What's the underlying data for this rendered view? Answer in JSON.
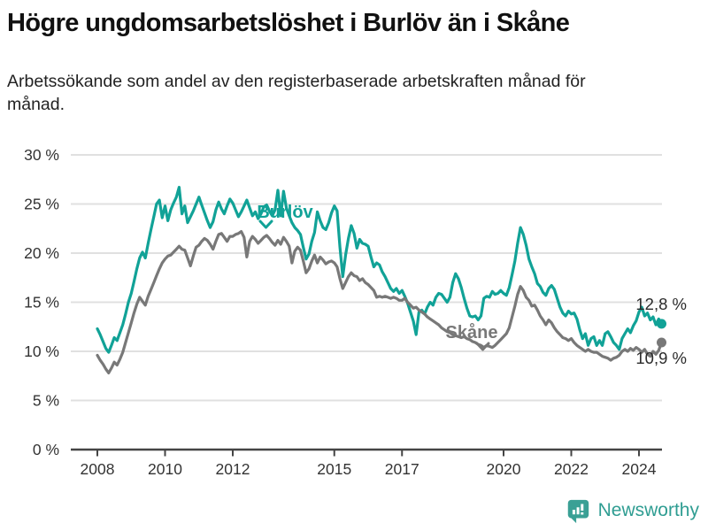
{
  "header": {
    "title": "Högre ungdomsarbetslöshet i Burlöv än i Skåne",
    "subtitle": "Arbetssökande som andel av den registerbaserade arbetskraften månad för månad."
  },
  "footer": {
    "brand": "Newsworthy",
    "logo_icon": "bar-chart-speech-bubble-icon"
  },
  "colors": {
    "burlov": "#11a297",
    "skane": "#787878",
    "grid": "#e0e0e0",
    "axis": "#444444",
    "tick_text": "#333333",
    "annotation_text": "#2b2b2b",
    "brand": "#3aa095"
  },
  "chart_data": {
    "type": "line",
    "frequency": "monthly",
    "start": {
      "year": 2008,
      "month": 1
    },
    "end": {
      "year": 2024,
      "month": 9
    },
    "unit": "%",
    "ylim": [
      0,
      30
    ],
    "grid": true,
    "y_tick_values": [
      0,
      5,
      10,
      15,
      20,
      25,
      30
    ],
    "y_tick_labels": [
      "0 %",
      "5 %",
      "10 %",
      "15 %",
      "20 %",
      "25 %",
      "30 %"
    ],
    "x_ticks": [
      2008,
      2010,
      2012,
      2015,
      2017,
      2020,
      2022,
      2024
    ],
    "x_tick_labels": [
      "2008",
      "2010",
      "2012",
      "2015",
      "2017",
      "2020",
      "2022",
      "2024"
    ],
    "series": [
      {
        "name": "Burlöv",
        "color": "#11a297",
        "end_label": "12,8 %",
        "end_value": 12.8,
        "values": [
          12.3,
          11.7,
          11.0,
          10.3,
          9.9,
          10.6,
          11.4,
          11.1,
          11.9,
          12.7,
          13.8,
          15.0,
          15.9,
          17.1,
          18.4,
          19.5,
          20.1,
          19.5,
          21.0,
          22.4,
          23.7,
          25.0,
          25.4,
          23.6,
          24.8,
          23.3,
          24.4,
          25.1,
          25.7,
          26.7,
          24.0,
          24.8,
          23.1,
          23.7,
          24.3,
          25.0,
          25.7,
          24.9,
          24.1,
          23.3,
          22.6,
          23.2,
          24.4,
          25.2,
          24.5,
          24.0,
          24.8,
          25.5,
          25.1,
          24.4,
          23.7,
          24.2,
          24.8,
          25.4,
          24.6,
          23.8,
          24.2,
          23.5,
          24.0,
          24.7,
          24.9,
          24.3,
          23.8,
          24.4,
          26.4,
          23.8,
          26.3,
          24.6,
          23.8,
          23.1,
          22.6,
          22.3,
          21.9,
          20.6,
          19.4,
          19.9,
          21.2,
          22.1,
          24.2,
          23.3,
          22.6,
          22.4,
          23.1,
          24.1,
          24.8,
          24.3,
          20.6,
          17.6,
          19.8,
          21.5,
          22.8,
          22.0,
          20.5,
          21.4,
          21.0,
          20.9,
          20.7,
          19.6,
          18.6,
          19.0,
          18.8,
          18.1,
          17.6,
          17.0,
          16.4,
          16.1,
          16.4,
          15.9,
          16.2,
          15.6,
          14.9,
          14.0,
          13.1,
          11.7,
          14.0,
          14.2,
          13.8,
          14.5,
          15.0,
          14.7,
          15.5,
          15.9,
          15.8,
          15.4,
          15.0,
          15.5,
          17.0,
          17.9,
          17.4,
          16.5,
          15.4,
          14.4,
          13.6,
          13.5,
          13.6,
          13.2,
          13.6,
          15.4,
          15.6,
          15.5,
          16.1,
          15.8,
          15.9,
          16.2,
          15.9,
          15.7,
          16.5,
          17.8,
          19.2,
          21.0,
          22.6,
          21.9,
          20.8,
          19.4,
          18.6,
          17.9,
          16.9,
          16.6,
          16.0,
          15.7,
          16.4,
          16.7,
          16.3,
          15.4,
          14.5,
          13.9,
          13.6,
          14.1,
          13.8,
          13.9,
          13.3,
          12.2,
          11.3,
          11.8,
          10.6,
          11.3,
          11.5,
          10.6,
          11.1,
          10.6,
          11.8,
          12.0,
          11.5,
          10.9,
          10.6,
          10.2,
          11.3,
          11.8,
          12.3,
          11.9,
          12.6,
          13.1,
          14.0,
          14.5,
          13.6,
          13.9,
          13.2,
          13.5,
          12.7,
          13.3,
          12.8
        ]
      },
      {
        "name": "Skåne",
        "color": "#787878",
        "end_label": "10,9 %",
        "end_value": 10.9,
        "values": [
          9.6,
          9.1,
          8.7,
          8.2,
          7.8,
          8.3,
          8.9,
          8.6,
          9.2,
          9.9,
          10.9,
          11.9,
          12.9,
          13.9,
          14.8,
          15.5,
          15.1,
          14.7,
          15.6,
          16.3,
          17.0,
          17.7,
          18.4,
          19.0,
          19.4,
          19.7,
          19.8,
          20.1,
          20.4,
          20.7,
          20.4,
          20.3,
          19.5,
          18.7,
          19.7,
          20.6,
          20.8,
          21.2,
          21.5,
          21.3,
          20.9,
          20.4,
          21.2,
          21.9,
          22.0,
          21.6,
          21.2,
          21.7,
          21.7,
          21.9,
          22.0,
          22.2,
          21.6,
          19.6,
          21.2,
          21.7,
          21.4,
          21.0,
          21.3,
          21.6,
          21.8,
          21.5,
          21.1,
          20.8,
          21.3,
          20.9,
          21.6,
          21.2,
          20.7,
          19.0,
          20.2,
          20.6,
          20.3,
          19.2,
          18.0,
          18.4,
          19.2,
          19.8,
          19.0,
          19.6,
          19.3,
          18.9,
          19.1,
          19.2,
          19.0,
          18.6,
          17.4,
          16.4,
          17.0,
          17.6,
          18.0,
          17.7,
          17.6,
          17.2,
          17.4,
          17.0,
          16.8,
          16.5,
          16.2,
          15.5,
          15.6,
          15.5,
          15.6,
          15.5,
          15.4,
          15.5,
          15.4,
          15.2,
          15.2,
          15.4,
          15.0,
          14.7,
          14.4,
          14.5,
          14.2,
          14.0,
          13.8,
          13.5,
          13.3,
          13.1,
          12.9,
          12.7,
          12.4,
          12.2,
          12.0,
          11.9,
          11.7,
          11.6,
          11.5,
          11.4,
          11.5,
          11.3,
          11.2,
          11.0,
          10.9,
          10.7,
          10.6,
          10.4,
          10.6,
          10.5,
          10.4,
          10.6,
          10.9,
          11.2,
          11.5,
          11.8,
          12.4,
          13.5,
          14.6,
          15.8,
          16.6,
          16.2,
          15.5,
          15.2,
          14.6,
          14.7,
          14.2,
          13.6,
          13.2,
          12.7,
          13.2,
          12.9,
          12.4,
          12.0,
          11.7,
          11.4,
          11.3,
          11.1,
          11.3,
          10.9,
          10.6,
          10.4,
          10.2,
          10.0,
          10.2,
          10.0,
          9.9,
          9.9,
          9.7,
          9.5,
          9.4,
          9.3,
          9.1,
          9.3,
          9.4,
          9.6,
          10.0,
          10.2,
          10.0,
          10.3,
          10.1,
          10.4,
          10.2,
          9.9,
          10.2,
          9.7,
          9.5,
          10.0,
          9.7,
          10.1,
          10.9
        ]
      }
    ]
  }
}
